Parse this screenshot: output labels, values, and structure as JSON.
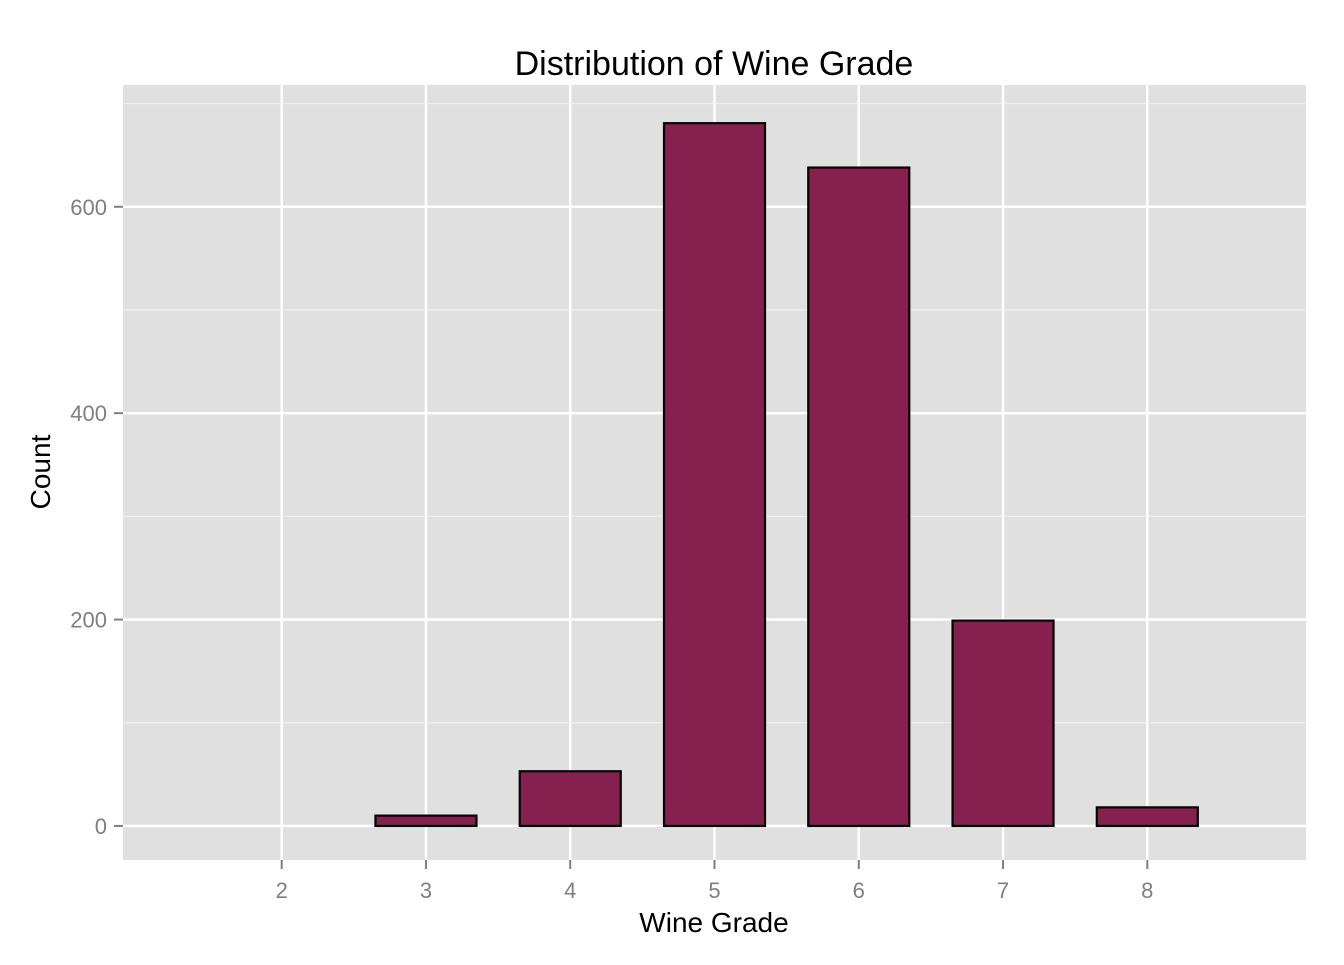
{
  "chart_data": {
    "type": "bar",
    "title": "Distribution of Wine Grade",
    "xlabel": "Wine Grade",
    "ylabel": "Count",
    "x_ticks": [
      "2",
      "3",
      "4",
      "5",
      "6",
      "7",
      "8"
    ],
    "y_ticks": [
      "0",
      "200",
      "400",
      "600"
    ],
    "categories": [
      "3",
      "4",
      "5",
      "6",
      "7",
      "8"
    ],
    "values": [
      10,
      53,
      681,
      638,
      199,
      18
    ],
    "xlim": [
      0.9,
      9.1
    ],
    "ylim": [
      -33,
      718
    ],
    "grid": true,
    "colors": {
      "bar_fill": "#85204f",
      "bar_stroke": "#000000",
      "panel_background": "#e0e0e0",
      "grid_major": "#ffffff",
      "grid_minor": "#f0f0f0"
    }
  }
}
